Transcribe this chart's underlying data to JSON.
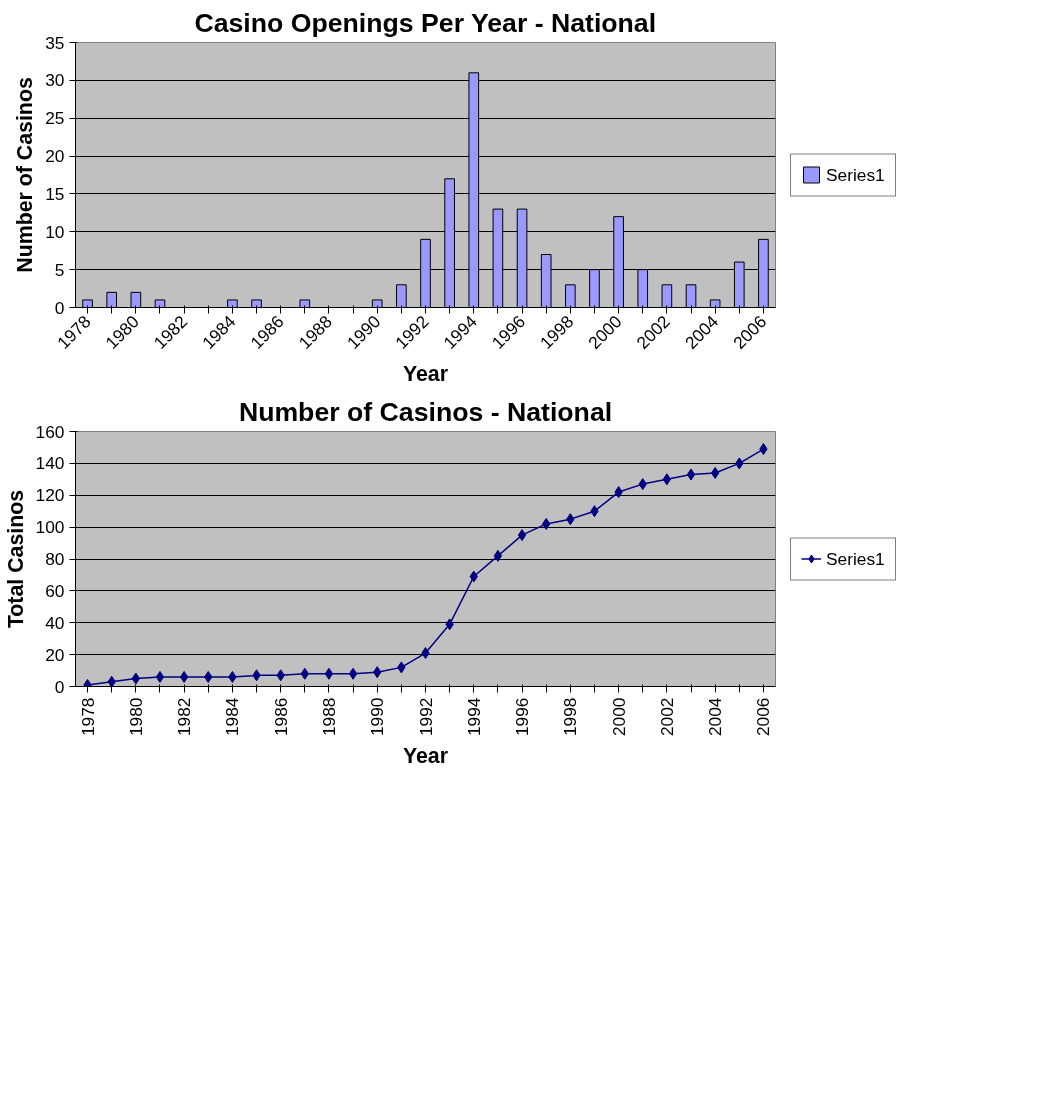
{
  "chart_data": [
    {
      "type": "bar",
      "title": "Casino Openings Per Year - National",
      "xlabel": "Year",
      "ylabel": "Number of Casinos",
      "categories": [
        "1978",
        null,
        "1980",
        null,
        "1982",
        null,
        "1984",
        null,
        "1986",
        null,
        "1988",
        null,
        "1990",
        null,
        "1992",
        null,
        "1994",
        null,
        "1996",
        null,
        "1998",
        null,
        "2000",
        null,
        "2002",
        null,
        "2004",
        null,
        "2006"
      ],
      "series": [
        {
          "name": "Series1",
          "color": "#9999ff",
          "values": [
            1,
            2,
            2,
            1,
            0,
            0,
            1,
            1,
            0,
            1,
            0,
            0,
            1,
            3,
            9,
            17,
            31,
            13,
            13,
            7,
            3,
            5,
            12,
            5,
            3,
            3,
            1,
            6,
            9
          ]
        }
      ],
      "ylim": [
        0,
        35
      ],
      "yticks": [
        0,
        5,
        10,
        15,
        20,
        25,
        30,
        35
      ],
      "grid": "y",
      "legend": "right"
    },
    {
      "type": "line",
      "title": "Number of Casinos - National",
      "xlabel": "Year",
      "ylabel": "Total Casinos",
      "categories": [
        "1978",
        null,
        "1980",
        null,
        "1982",
        null,
        "1984",
        null,
        "1986",
        null,
        "1988",
        null,
        "1990",
        null,
        "1992",
        null,
        "1994",
        null,
        "1996",
        null,
        "1998",
        null,
        "2000",
        null,
        "2002",
        null,
        "2004",
        null,
        "2006"
      ],
      "series": [
        {
          "name": "Series1",
          "color": "#000080",
          "values": [
            1,
            3,
            5,
            6,
            6,
            6,
            6,
            7,
            7,
            8,
            8,
            8,
            9,
            12,
            21,
            39,
            69,
            82,
            95,
            102,
            105,
            110,
            122,
            127,
            130,
            133,
            134,
            140,
            149
          ]
        }
      ],
      "ylim": [
        0,
        160
      ],
      "yticks": [
        0,
        20,
        40,
        60,
        80,
        100,
        120,
        140,
        160
      ],
      "grid": "y",
      "legend": "right",
      "marker": "diamond",
      "line_style": "solid"
    }
  ]
}
